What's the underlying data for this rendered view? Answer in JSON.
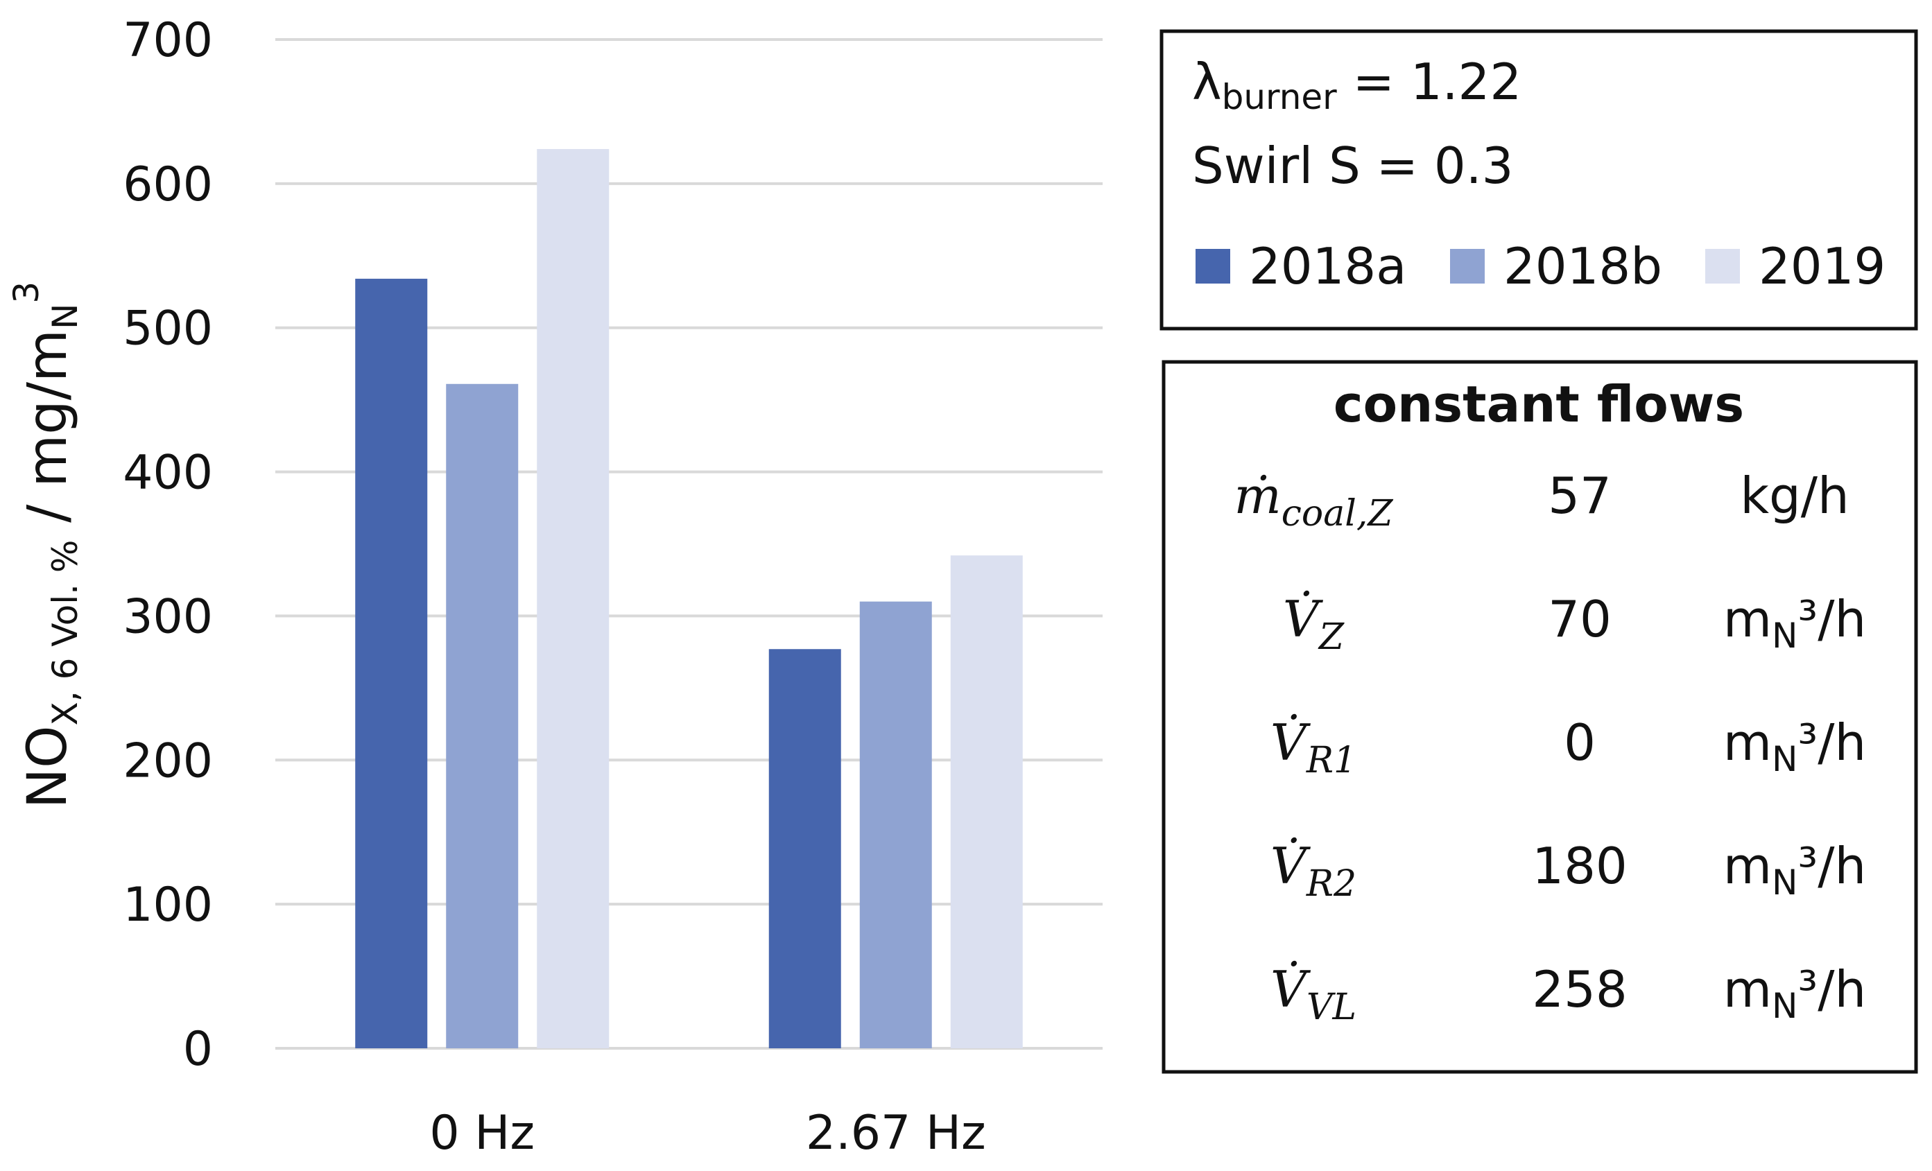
{
  "chart_data": {
    "type": "bar",
    "categories": [
      "0 Hz",
      "2.67 Hz"
    ],
    "series": [
      {
        "name": "2018a",
        "color": "#4665ad",
        "values": [
          534,
          277
        ]
      },
      {
        "name": "2018b",
        "color": "#8fa3d2",
        "values": [
          461,
          310
        ]
      },
      {
        "name": "2019",
        "color": "#dbe0f0",
        "values": [
          624,
          342
        ]
      }
    ],
    "ylabel": {
      "main": "NO",
      "sub": "X, 6 Vol. %",
      "unit": " / mg/m",
      "unit_sub": "N",
      "unit_sup": "3"
    },
    "ylim": [
      0,
      700
    ],
    "yticks": [
      0,
      100,
      200,
      300,
      400,
      500,
      600,
      700
    ],
    "grid": true
  },
  "info_box": {
    "lambda": {
      "symbol": "λ",
      "sub": "burner",
      "rest": " = 1.22"
    },
    "swirl": "Swirl S = 0.3"
  },
  "flow_table": {
    "title": "constant flows",
    "rows": [
      {
        "symbol": "ṁ",
        "sub": "coal,Z",
        "value": 57,
        "unit": {
          "main": "kg/h"
        }
      },
      {
        "symbol": "V̇",
        "sub": "Z",
        "value": 70,
        "unit": {
          "main": "m",
          "sub": "N",
          "rest": "³/h"
        }
      },
      {
        "symbol": "V̇",
        "sub": "R1",
        "value": 0,
        "unit": {
          "main": "m",
          "sub": "N",
          "rest": "³/h"
        }
      },
      {
        "symbol": "V̇",
        "sub": "R2",
        "value": 180,
        "unit": {
          "main": "m",
          "sub": "N",
          "rest": "³/h"
        }
      },
      {
        "symbol": "V̇",
        "sub": "VL",
        "value": 258,
        "unit": {
          "main": "m",
          "sub": "N",
          "rest": "³/h"
        }
      }
    ]
  }
}
